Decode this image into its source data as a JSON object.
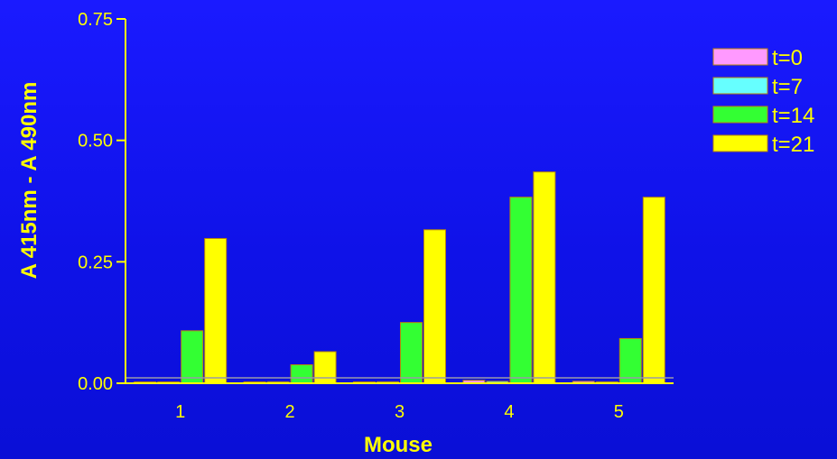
{
  "chart_data": {
    "type": "bar",
    "xlabel": "Mouse",
    "ylabel": "A 415nm - A 490nm",
    "categories": [
      "1",
      "2",
      "3",
      "4",
      "5"
    ],
    "ylim": [
      0,
      0.75
    ],
    "yticks": [
      "0.00",
      "0.25",
      "0.50",
      "0.75"
    ],
    "legend_position": "top-right",
    "grid": false,
    "series": [
      {
        "name": "t=0",
        "color": "#ff99ff",
        "values": [
          0.002,
          0.002,
          0.002,
          0.006,
          0.004
        ]
      },
      {
        "name": "t=7",
        "color": "#66ffff",
        "values": [
          0.002,
          0.003,
          0.003,
          0.004,
          0.003
        ]
      },
      {
        "name": "t=14",
        "color": "#33ff33",
        "values": [
          0.108,
          0.038,
          0.125,
          0.383,
          0.092
        ]
      },
      {
        "name": "t=21",
        "color": "#ffff00",
        "values": [
          0.298,
          0.065,
          0.316,
          0.435,
          0.383
        ]
      }
    ],
    "colors": {
      "axis": "#ffff00",
      "background": "#1414f0",
      "bar_border": "#b8860b",
      "reference_line": "#9999aa"
    }
  }
}
